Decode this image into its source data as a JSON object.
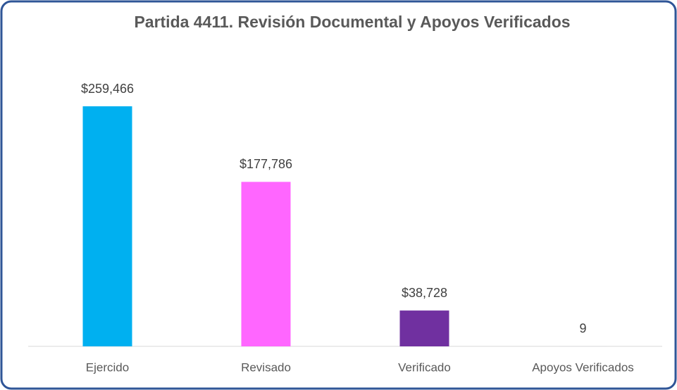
{
  "chart_data": {
    "type": "bar",
    "title": "Partida 4411. Revisión Documental y Apoyos Verificados",
    "categories": [
      "Ejercido",
      "Revisado",
      "Verificado",
      "Apoyos Verificados"
    ],
    "values": [
      259466,
      177786,
      38728,
      9
    ],
    "value_labels": [
      "$259,466",
      "$177,786",
      "$38,728",
      "9"
    ],
    "colors": [
      "#00b0f0",
      "#ff66ff",
      "#7030a0",
      "#4472c4"
    ]
  }
}
